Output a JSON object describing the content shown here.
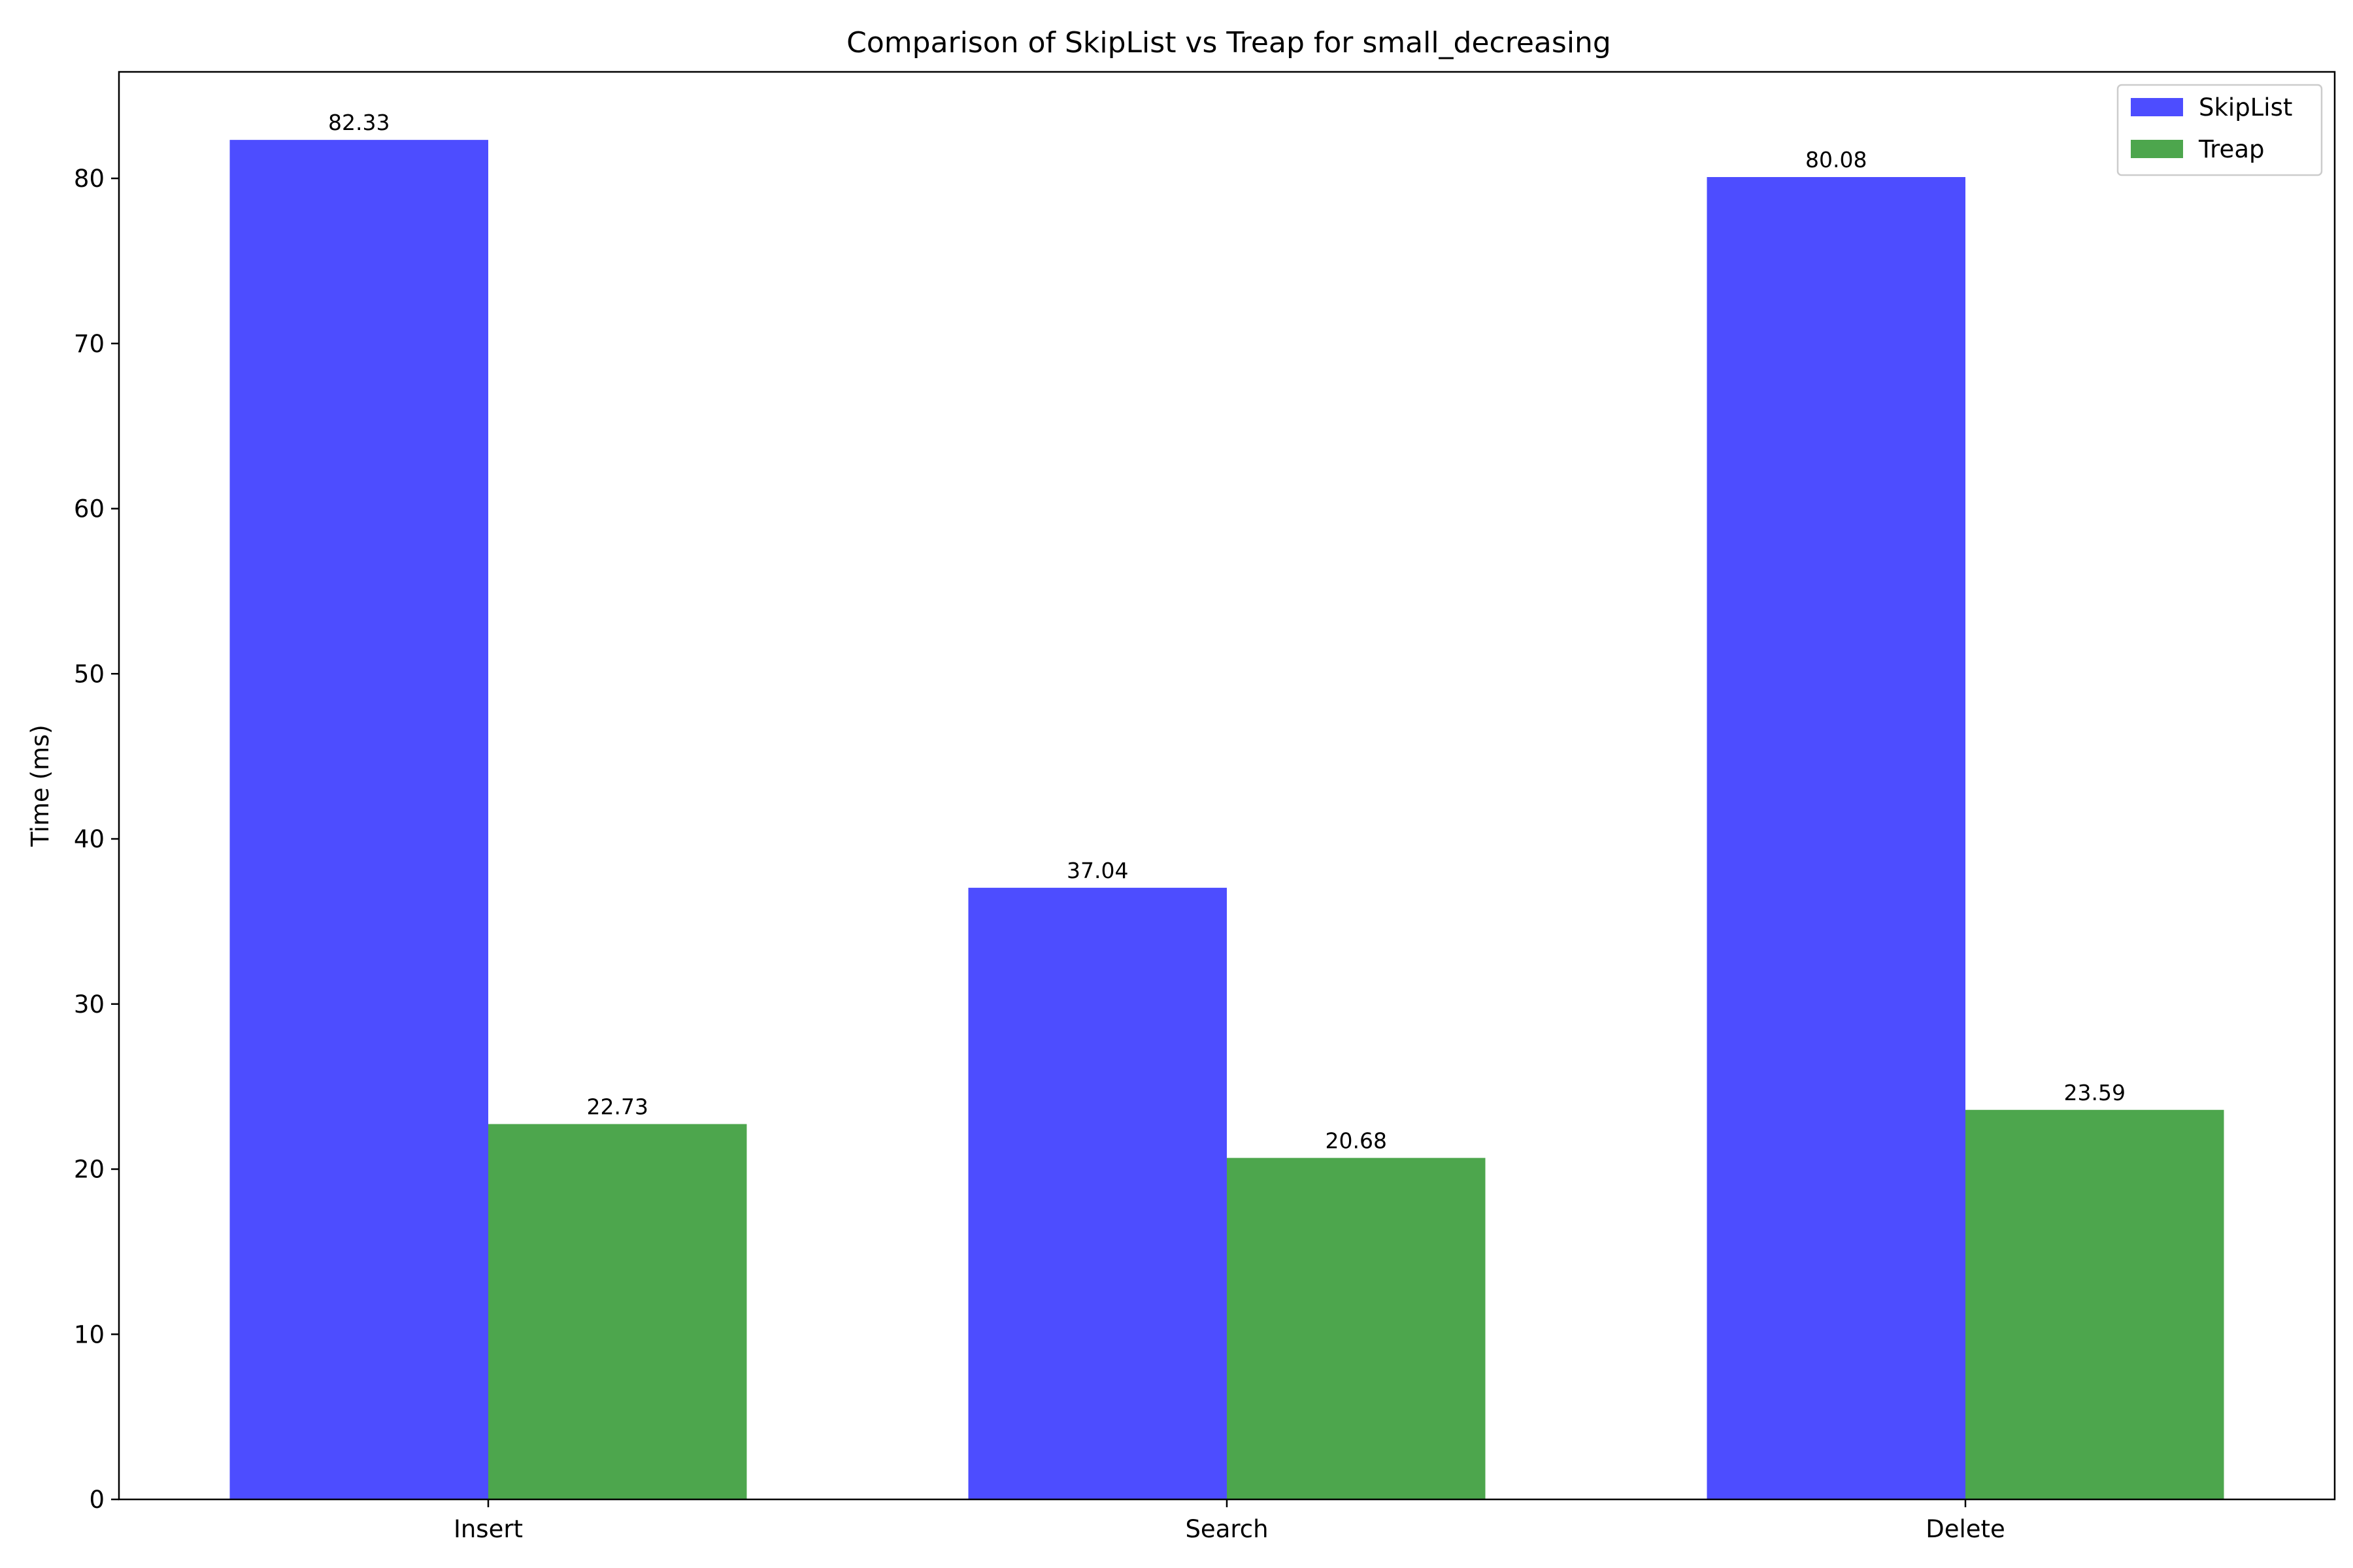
{
  "chart_data": {
    "type": "bar",
    "title": "Comparison of SkipList vs Treap for small_decreasing",
    "xlabel": "",
    "ylabel": "Time (ms)",
    "categories": [
      "Insert",
      "Search",
      "Delete"
    ],
    "series": [
      {
        "name": "SkipList",
        "values": [
          82.33,
          37.04,
          80.08
        ],
        "color": "#4d4dff"
      },
      {
        "name": "Treap",
        "values": [
          22.73,
          20.68,
          23.59
        ],
        "color": "#4da64d"
      }
    ],
    "value_labels": {
      "SkipList": [
        "82.33",
        "37.04",
        "80.08"
      ],
      "Treap": [
        "22.73",
        "20.68",
        "23.59"
      ]
    },
    "ylim": [
      0,
      86.45
    ],
    "yticks": [
      0,
      10,
      20,
      30,
      40,
      50,
      60,
      70,
      80
    ],
    "grid": false,
    "legend_position": "top-right"
  }
}
